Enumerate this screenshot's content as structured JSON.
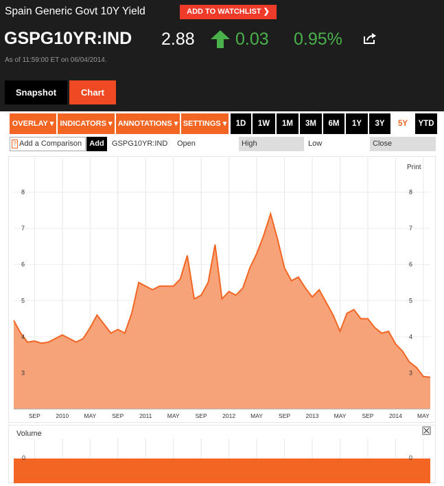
{
  "header": {
    "title": "Spain Generic Govt 10Y Yield",
    "watchlist_label": "ADD TO WATCHLIST ❯",
    "ticker": "GSPG10YR:IND",
    "price": "2.88",
    "change": "0.03",
    "change_pct": "0.95%",
    "as_of": "As of 11:59:00 ET on 06/04/2014.",
    "up_color": "#49b24a"
  },
  "tabs": [
    {
      "label": "Snapshot",
      "active": false
    },
    {
      "label": "Chart",
      "active": true
    }
  ],
  "toolbar": {
    "dropdowns": [
      "OVERLAY ▾",
      "INDICATORS ▾",
      "ANNOTATIONS ▾",
      "SETTINGS ▾"
    ],
    "ranges": [
      "1D",
      "1W",
      "1M",
      "3M",
      "6M",
      "1Y",
      "3Y",
      "5Y",
      "YTD"
    ],
    "active_range": "5Y"
  },
  "quote_row": {
    "compare_help": "?",
    "compare_placeholder": "Add a Comparison",
    "add_label": "Add",
    "symbol": "GSPG10YR:IND",
    "open_label": "Open",
    "high_label": "High",
    "low_label": "Low",
    "close_label": "Close"
  },
  "chart_data": {
    "type": "area",
    "print_label": "Print",
    "ylim": [
      2.0,
      9.0
    ],
    "y_ticks": [
      "8",
      "7",
      "6",
      "5",
      "4",
      "3"
    ],
    "x_tick_labels": [
      "SEP",
      "2010",
      "MAY",
      "SEP",
      "2011",
      "MAY",
      "SEP",
      "2012",
      "MAY",
      "SEP",
      "2013",
      "MAY",
      "SEP",
      "2014",
      "MAY"
    ],
    "x_tick_dates": [
      "2009-09",
      "2010-01",
      "2010-05",
      "2010-09",
      "2011-01",
      "2011-05",
      "2011-09",
      "2012-01",
      "2012-05",
      "2012-09",
      "2013-01",
      "2013-05",
      "2013-09",
      "2014-01",
      "2014-05"
    ],
    "x_range": [
      "2009-06",
      "2014-06"
    ],
    "line_color": "#f26522",
    "fill_color": "#f7a37a",
    "series": [
      {
        "x": [
          "2009-06",
          "2009-07",
          "2009-08",
          "2009-09",
          "2009-10",
          "2009-11",
          "2009-12",
          "2010-01",
          "2010-02",
          "2010-03",
          "2010-04",
          "2010-05",
          "2010-06",
          "2010-07",
          "2010-08",
          "2010-09",
          "2010-10",
          "2010-11",
          "2010-12",
          "2011-01",
          "2011-02",
          "2011-03",
          "2011-04",
          "2011-05",
          "2011-06",
          "2011-07",
          "2011-08",
          "2011-09",
          "2011-10",
          "2011-11",
          "2011-12",
          "2012-01",
          "2012-02",
          "2012-03",
          "2012-04",
          "2012-05",
          "2012-06",
          "2012-07",
          "2012-08",
          "2012-09",
          "2012-10",
          "2012-11",
          "2012-12",
          "2013-01",
          "2013-02",
          "2013-03",
          "2013-04",
          "2013-05",
          "2013-06",
          "2013-07",
          "2013-08",
          "2013-09",
          "2013-10",
          "2013-11",
          "2013-12",
          "2014-01",
          "2014-02",
          "2014-03",
          "2014-04",
          "2014-05",
          "2014-06"
        ],
        "y": [
          4.45,
          4.1,
          3.85,
          3.88,
          3.82,
          3.85,
          3.95,
          4.05,
          3.95,
          3.85,
          3.95,
          4.25,
          4.6,
          4.35,
          4.1,
          4.2,
          4.1,
          4.65,
          5.5,
          5.4,
          5.3,
          5.4,
          5.4,
          5.4,
          5.6,
          6.25,
          5.05,
          5.15,
          5.5,
          6.55,
          5.05,
          5.25,
          5.15,
          5.35,
          5.9,
          6.3,
          6.8,
          7.4,
          6.7,
          5.9,
          5.55,
          5.65,
          5.35,
          5.1,
          5.3,
          4.95,
          4.6,
          4.15,
          4.65,
          4.75,
          4.5,
          4.5,
          4.25,
          4.1,
          4.15,
          3.8,
          3.6,
          3.3,
          3.15,
          2.9,
          2.88
        ]
      }
    ],
    "volume": {
      "label": "Volume",
      "y_tick": "0",
      "bar_color": "#f26522"
    }
  }
}
